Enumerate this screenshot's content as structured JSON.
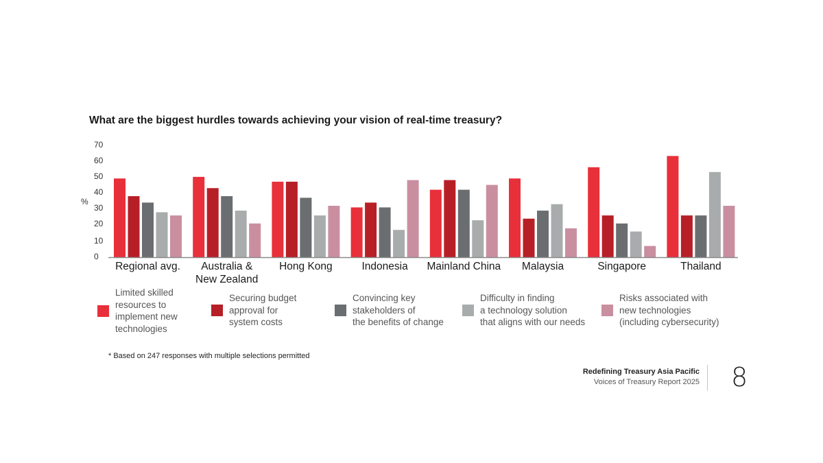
{
  "chart_data": {
    "type": "bar",
    "title": "What are the biggest hurdles towards achieving your vision of real-time treasury?",
    "xlabel": "",
    "ylabel": "%",
    "ylim": [
      0,
      70
    ],
    "yticks": [
      0,
      10,
      20,
      30,
      40,
      50,
      60,
      70
    ],
    "grid": false,
    "legend_position": "bottom",
    "categories": [
      "Regional avg.",
      "Australia &\nNew Zealand",
      "Hong Kong",
      "Indonesia",
      "Mainland China",
      "Malaysia",
      "Singapore",
      "Thailand"
    ],
    "series": [
      {
        "name": "Limited skilled\nresources to\nimplement new\ntechnologies",
        "color": "#e8303a",
        "values": [
          49,
          50,
          47,
          31,
          42,
          49,
          56,
          63
        ]
      },
      {
        "name": "Securing budget\napproval for\nsystem costs",
        "color": "#b71f27",
        "values": [
          38,
          43,
          47,
          34,
          48,
          24,
          26,
          26
        ]
      },
      {
        "name": "Convincing key\nstakeholders of\nthe benefits of change",
        "color": "#6b6e70",
        "values": [
          34,
          38,
          37,
          31,
          42,
          29,
          21,
          26
        ]
      },
      {
        "name": "Difficulty in finding\na technology solution\nthat aligns with our needs",
        "color": "#a9acad",
        "values": [
          28,
          29,
          26,
          17,
          23,
          33,
          16,
          53
        ]
      },
      {
        "name": "Risks associated with\nnew technologies\n(including cybersecurity)",
        "color": "#c98fa0",
        "values": [
          26,
          21,
          32,
          48,
          45,
          18,
          7,
          32
        ]
      }
    ]
  },
  "footnote": "* Based on 247 responses with multiple selections permitted",
  "footer": {
    "report_title": "Redefining Treasury Asia Pacific",
    "report_subtitle": "Voices of Treasury Report 2025",
    "page_number": "8"
  },
  "colors": {
    "axis": "#8a8a8a",
    "divider": "#e8b4bd"
  }
}
